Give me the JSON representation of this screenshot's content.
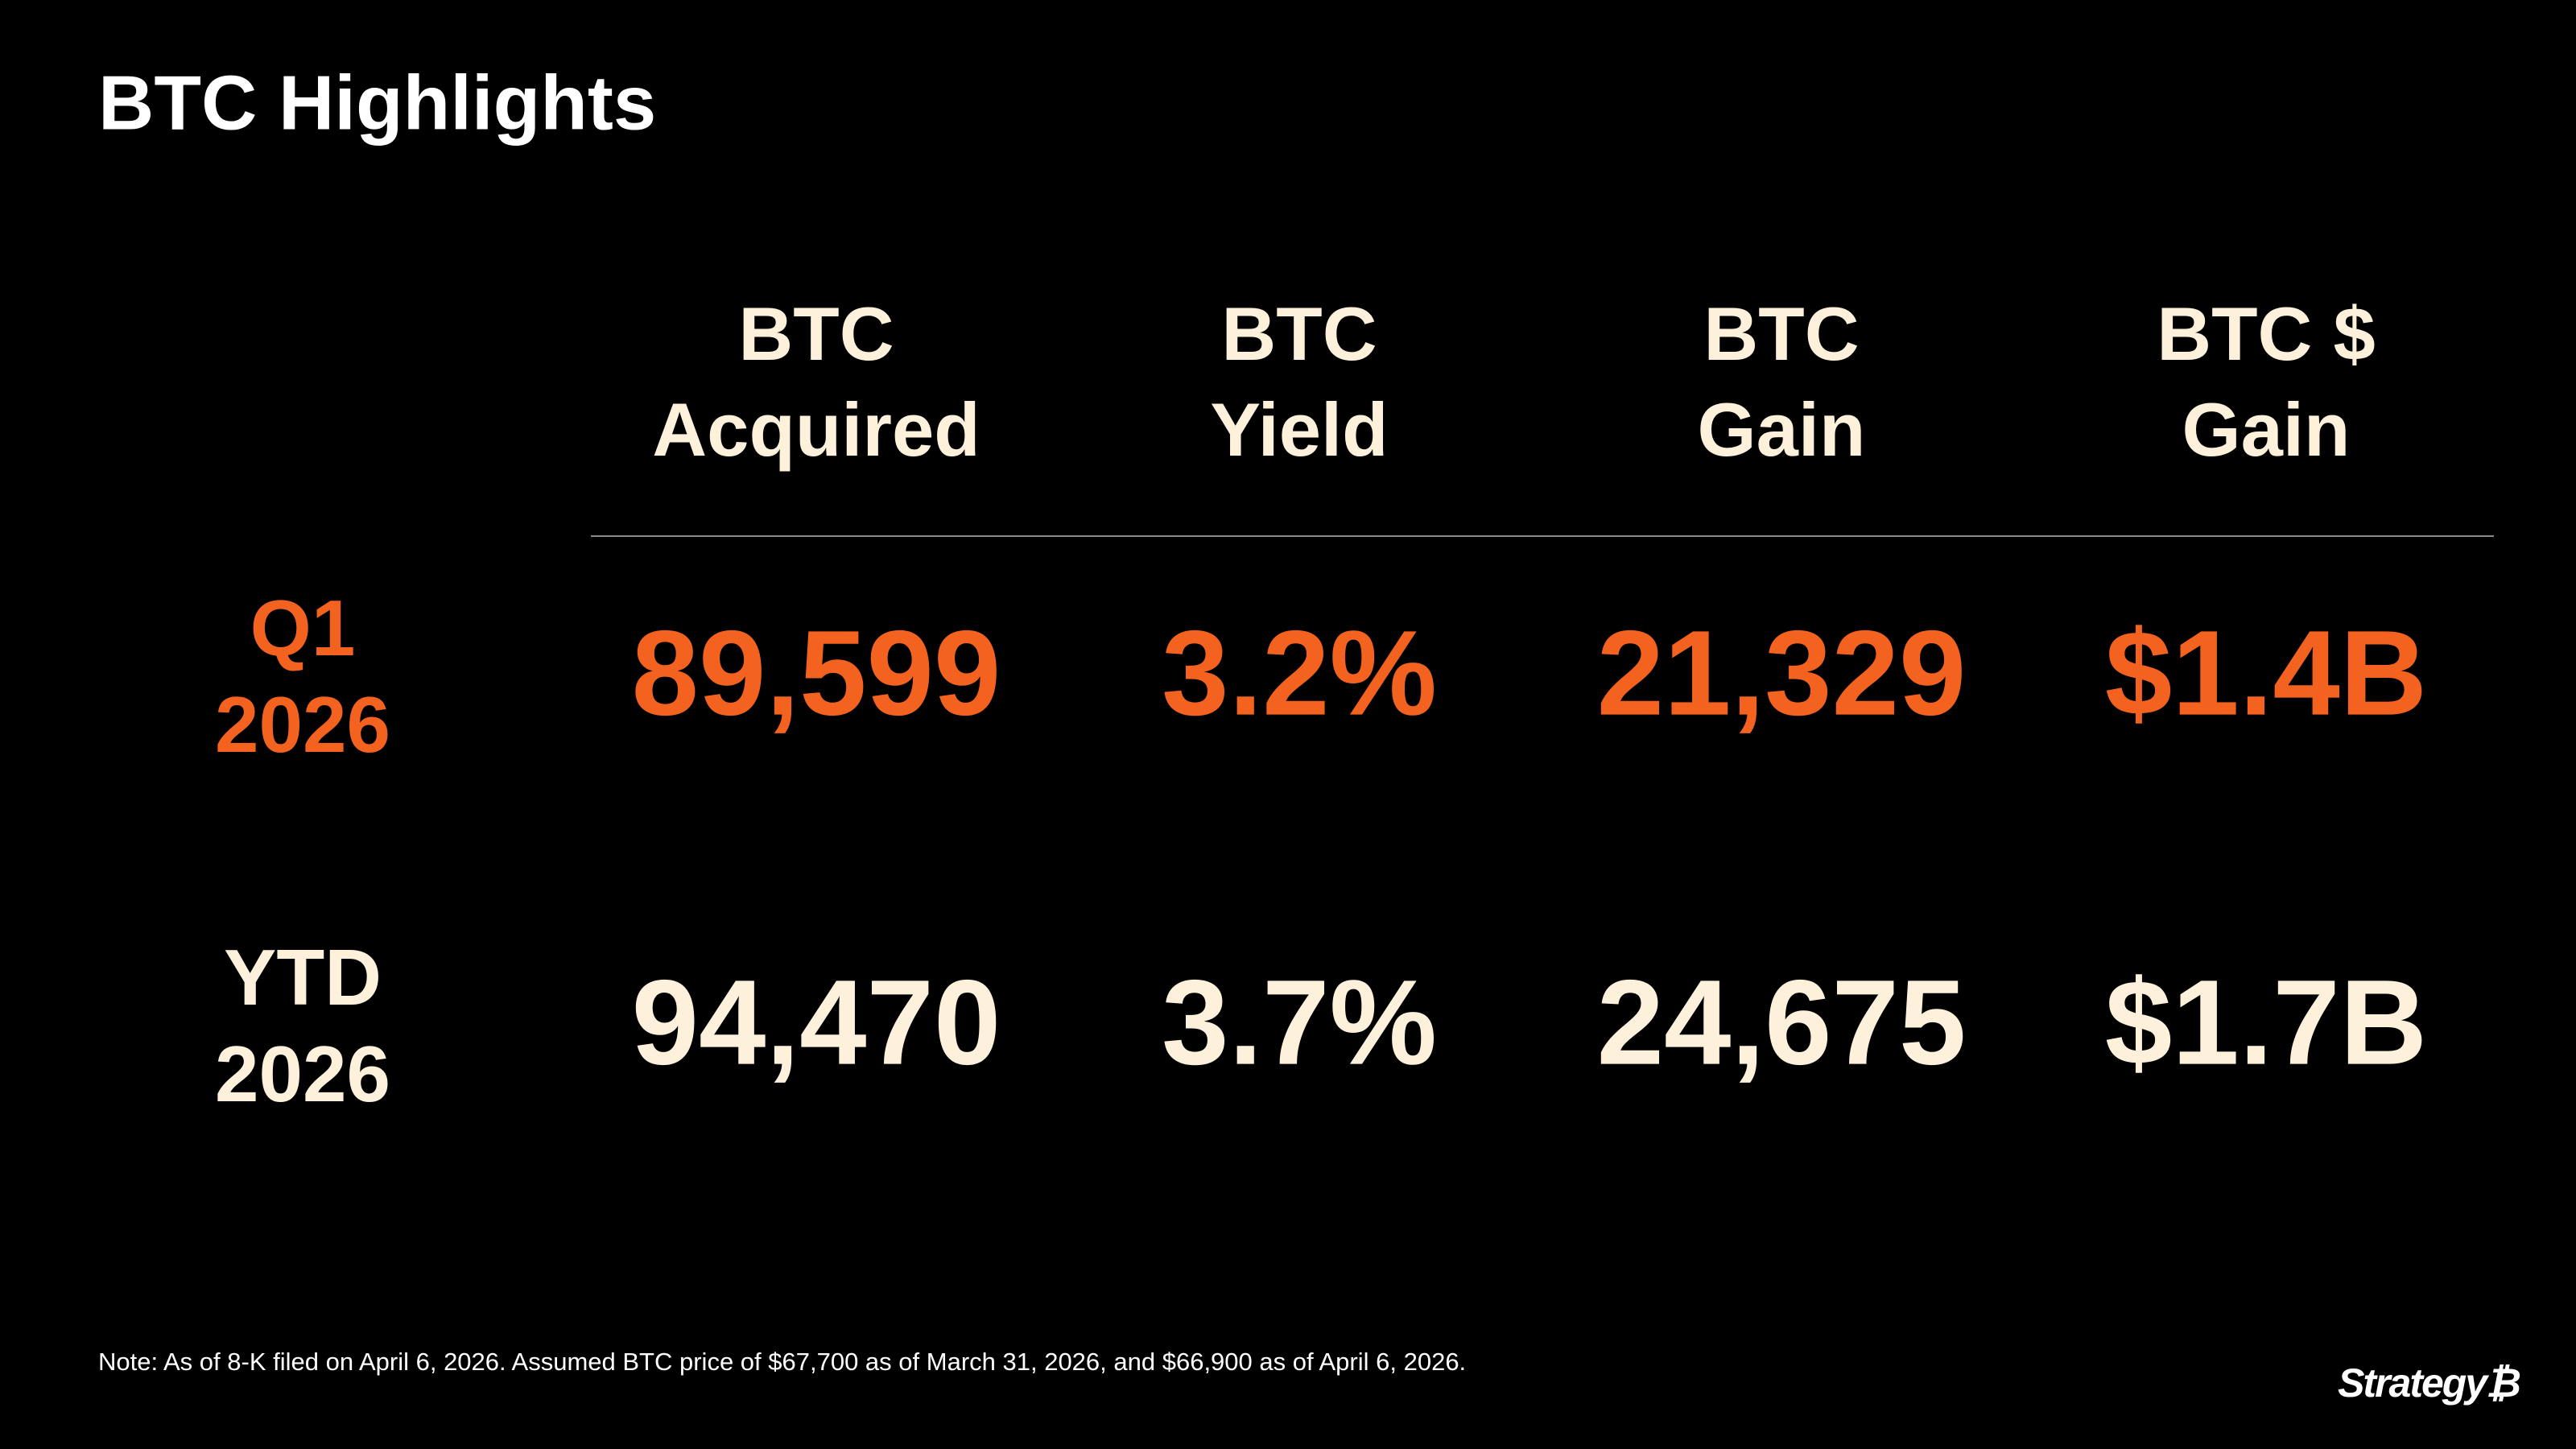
{
  "header": {
    "title": "BTC Highlights"
  },
  "table": {
    "columns": [
      [
        "BTC",
        "Acquired"
      ],
      [
        "BTC",
        "Yield"
      ],
      [
        "BTC",
        "Gain"
      ],
      [
        "BTC $",
        "Gain"
      ]
    ],
    "rows": [
      {
        "label": [
          "Q1",
          "2026"
        ],
        "cells": [
          "89,599",
          "3.2%",
          "21,329",
          "$1.4B"
        ]
      },
      {
        "label": [
          "YTD",
          "2026"
        ],
        "cells": [
          "94,470",
          "3.7%",
          "24,675",
          "$1.7B"
        ]
      }
    ]
  },
  "footer": {
    "note": "Note: As of 8-K filed on April 6, 2026. Assumed BTC price of $67,700 as of March 31, 2026, and $66,900 as of April 6, 2026.",
    "logo": "Strategy₿"
  }
}
